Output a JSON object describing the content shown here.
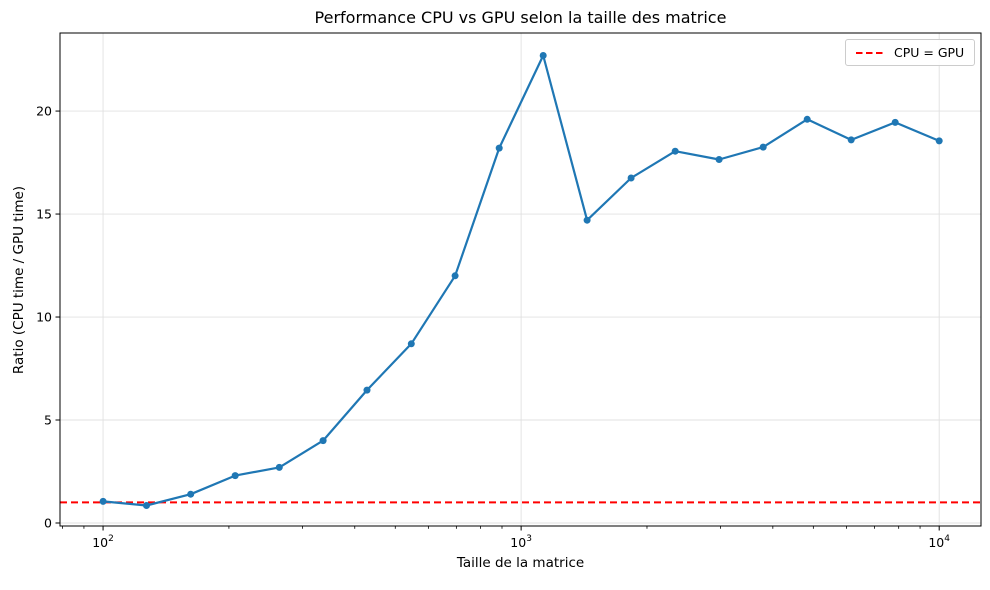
{
  "figure": {
    "background": "#ffffff"
  },
  "chart_data": {
    "type": "line",
    "title": "Performance CPU vs GPU selon la taille des matrice",
    "xlabel": "Taille de la matrice",
    "ylabel": "Ratio (CPU time / GPU time)",
    "x_scale": "log",
    "grid": true,
    "xlim_log10": [
      1.897,
      4.1
    ],
    "ylim": [
      -0.146,
      23.79
    ],
    "x": [
      100,
      127,
      162,
      207,
      264,
      336,
      428,
      546,
      695,
      886,
      1129,
      1438,
      1833,
      2336,
      2976,
      3793,
      4833,
      6158,
      7848,
      10000
    ],
    "series": [
      {
        "name": "ratio-cpu-gpu",
        "color": "#1f77b4",
        "values": [
          1.05,
          0.85,
          1.4,
          2.3,
          2.7,
          4.0,
          6.45,
          8.7,
          12.0,
          18.2,
          22.7,
          14.7,
          16.75,
          18.05,
          17.65,
          18.25,
          19.6,
          18.6,
          19.45,
          18.55
        ]
      }
    ],
    "ref_line": {
      "label": "CPU = GPU",
      "y": 1,
      "color": "#ff0000",
      "style": "dashed"
    },
    "legend": {
      "position": "upper right",
      "entries": [
        {
          "label": "CPU = GPU",
          "color": "#ff0000",
          "dash": true
        }
      ]
    },
    "x_ticks": [
      {
        "value": 100,
        "base": "10",
        "exp": "2"
      },
      {
        "value": 1000,
        "base": "10",
        "exp": "3"
      },
      {
        "value": 10000,
        "base": "10",
        "exp": "4"
      }
    ],
    "y_ticks": [
      0,
      5,
      10,
      15,
      20
    ],
    "colors": {
      "line": "#1f77b4",
      "ref_line": "#ff0000",
      "grid": "#e0e0e0",
      "spine": "#000000",
      "text": "#000000"
    }
  }
}
